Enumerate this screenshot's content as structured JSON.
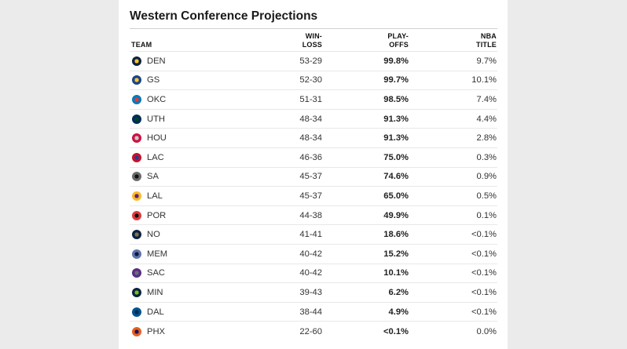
{
  "title": "Western Conference Projections",
  "headers": {
    "team": "TEAM",
    "win_loss": "WIN-\nLOSS",
    "playoffs": "PLAY-\nOFFS",
    "nba_title": "NBA\nTITLE"
  },
  "teams": [
    {
      "abbr": "DEN",
      "record": "53-29",
      "playoffs": "99.8%",
      "title": "9.7%",
      "logo": "nuggets-logo-icon",
      "color": "#0e2240",
      "accent": "#fec524"
    },
    {
      "abbr": "GS",
      "record": "52-30",
      "playoffs": "99.7%",
      "title": "10.1%",
      "logo": "warriors-logo-icon",
      "color": "#1d428a",
      "accent": "#ffc72c"
    },
    {
      "abbr": "OKC",
      "record": "51-31",
      "playoffs": "98.5%",
      "title": "7.4%",
      "logo": "thunder-logo-icon",
      "color": "#007ac1",
      "accent": "#ef3b24"
    },
    {
      "abbr": "UTH",
      "record": "48-34",
      "playoffs": "91.3%",
      "title": "4.4%",
      "logo": "jazz-logo-icon",
      "color": "#002b5c",
      "accent": "#00471b"
    },
    {
      "abbr": "HOU",
      "record": "48-34",
      "playoffs": "91.3%",
      "title": "2.8%",
      "logo": "rockets-logo-icon",
      "color": "#ce1141",
      "accent": "#c4ced4"
    },
    {
      "abbr": "LAC",
      "record": "46-36",
      "playoffs": "75.0%",
      "title": "0.3%",
      "logo": "clippers-logo-icon",
      "color": "#c8102e",
      "accent": "#1d428a"
    },
    {
      "abbr": "SA",
      "record": "45-37",
      "playoffs": "74.6%",
      "title": "0.9%",
      "logo": "spurs-logo-icon",
      "color": "#6b6b6b",
      "accent": "#111111"
    },
    {
      "abbr": "LAL",
      "record": "45-37",
      "playoffs": "65.0%",
      "title": "0.5%",
      "logo": "lakers-logo-icon",
      "color": "#fdb927",
      "accent": "#552583"
    },
    {
      "abbr": "POR",
      "record": "44-38",
      "playoffs": "49.9%",
      "title": "0.1%",
      "logo": "blazers-logo-icon",
      "color": "#e03a3e",
      "accent": "#111111"
    },
    {
      "abbr": "NO",
      "record": "41-41",
      "playoffs": "18.6%",
      "title": "<0.1%",
      "logo": "pelicans-logo-icon",
      "color": "#0c2340",
      "accent": "#85714d"
    },
    {
      "abbr": "MEM",
      "record": "40-42",
      "playoffs": "15.2%",
      "title": "<0.1%",
      "logo": "grizzlies-logo-icon",
      "color": "#5d76a9",
      "accent": "#12173f"
    },
    {
      "abbr": "SAC",
      "record": "40-42",
      "playoffs": "10.1%",
      "title": "<0.1%",
      "logo": "kings-logo-icon",
      "color": "#5a2d81",
      "accent": "#63727a"
    },
    {
      "abbr": "MIN",
      "record": "39-43",
      "playoffs": "6.2%",
      "title": "<0.1%",
      "logo": "timberwolves-logo-icon",
      "color": "#0c2340",
      "accent": "#78be20"
    },
    {
      "abbr": "DAL",
      "record": "38-44",
      "playoffs": "4.9%",
      "title": "<0.1%",
      "logo": "mavericks-logo-icon",
      "color": "#00538c",
      "accent": "#002b5e"
    },
    {
      "abbr": "PHX",
      "record": "22-60",
      "playoffs": "<0.1%",
      "title": "0.0%",
      "logo": "suns-logo-icon",
      "color": "#e56020",
      "accent": "#1d1160"
    }
  ]
}
